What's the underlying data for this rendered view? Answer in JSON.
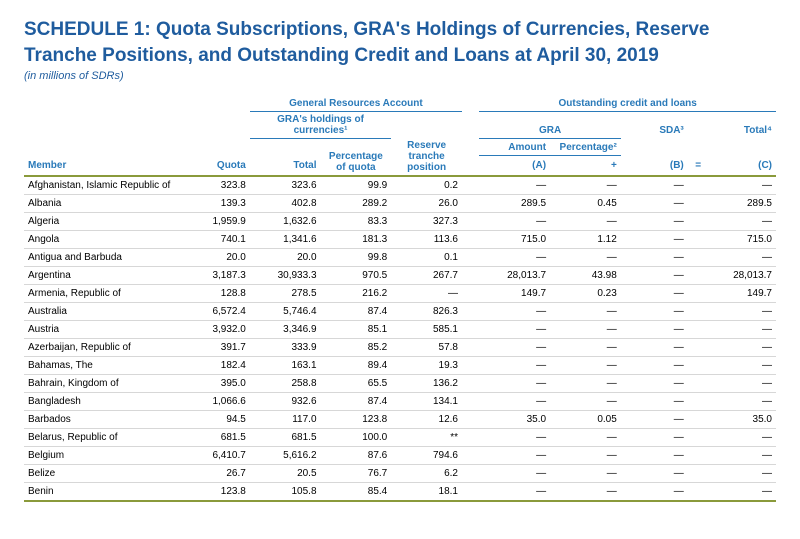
{
  "title_line1": "SCHEDULE 1: Quota Subscriptions, GRA's Holdings of Currencies, Reserve",
  "title_line2": "Tranche Positions, and Outstanding Credit and Loans at April 30, 2019",
  "subtitle": "(in millions of SDRs)",
  "colors": {
    "title": "#1f5c9e",
    "header_text": "#2a7ab9",
    "header_rule": "#2a7ab9",
    "row_divider": "#d7d7d7",
    "accent_rule": "#8a9a3b",
    "body_text": "#000000",
    "background": "#ffffff"
  },
  "headers": {
    "member": "Member",
    "quota": "Quota",
    "gra_group": "General Resources Account",
    "holdings_group": "GRA's holdings of currencies¹",
    "total": "Total",
    "pct_quota": "Percentage of quota",
    "reserve": "Reserve tranche position",
    "ocl_group": "Outstanding credit and loans",
    "gra_sub": "GRA",
    "amount": "Amount",
    "percentage": "Percentage²",
    "a": "(A)",
    "plus": "+",
    "sda": "SDA³",
    "b": "(B)",
    "eq": "=",
    "total4": "Total⁴",
    "c": "(C)"
  },
  "rows": [
    {
      "member": "Afghanistan, Islamic Republic of",
      "quota": "323.8",
      "total": "323.6",
      "pct": "99.9",
      "reserve": "0.2",
      "amt": "—",
      "pctg": "—",
      "sda": "—",
      "tot": "—"
    },
    {
      "member": "Albania",
      "quota": "139.3",
      "total": "402.8",
      "pct": "289.2",
      "reserve": "26.0",
      "amt": "289.5",
      "pctg": "0.45",
      "sda": "—",
      "tot": "289.5"
    },
    {
      "member": "Algeria",
      "quota": "1,959.9",
      "total": "1,632.6",
      "pct": "83.3",
      "reserve": "327.3",
      "amt": "—",
      "pctg": "—",
      "sda": "—",
      "tot": "—"
    },
    {
      "member": "Angola",
      "quota": "740.1",
      "total": "1,341.6",
      "pct": "181.3",
      "reserve": "113.6",
      "amt": "715.0",
      "pctg": "1.12",
      "sda": "—",
      "tot": "715.0"
    },
    {
      "member": "Antigua and Barbuda",
      "quota": "20.0",
      "total": "20.0",
      "pct": "99.8",
      "reserve": "0.1",
      "amt": "—",
      "pctg": "—",
      "sda": "—",
      "tot": "—"
    },
    {
      "member": "Argentina",
      "quota": "3,187.3",
      "total": "30,933.3",
      "pct": "970.5",
      "reserve": "267.7",
      "amt": "28,013.7",
      "pctg": "43.98",
      "sda": "—",
      "tot": "28,013.7"
    },
    {
      "member": "Armenia, Republic of",
      "quota": "128.8",
      "total": "278.5",
      "pct": "216.2",
      "reserve": "—",
      "amt": "149.7",
      "pctg": "0.23",
      "sda": "—",
      "tot": "149.7"
    },
    {
      "member": "Australia",
      "quota": "6,572.4",
      "total": "5,746.4",
      "pct": "87.4",
      "reserve": "826.3",
      "amt": "—",
      "pctg": "—",
      "sda": "—",
      "tot": "—"
    },
    {
      "member": "Austria",
      "quota": "3,932.0",
      "total": "3,346.9",
      "pct": "85.1",
      "reserve": "585.1",
      "amt": "—",
      "pctg": "—",
      "sda": "—",
      "tot": "—"
    },
    {
      "member": "Azerbaijan, Republic of",
      "quota": "391.7",
      "total": "333.9",
      "pct": "85.2",
      "reserve": "57.8",
      "amt": "—",
      "pctg": "—",
      "sda": "—",
      "tot": "—"
    },
    {
      "member": "Bahamas, The",
      "quota": "182.4",
      "total": "163.1",
      "pct": "89.4",
      "reserve": "19.3",
      "amt": "—",
      "pctg": "—",
      "sda": "—",
      "tot": "—"
    },
    {
      "member": "Bahrain, Kingdom of",
      "quota": "395.0",
      "total": "258.8",
      "pct": "65.5",
      "reserve": "136.2",
      "amt": "—",
      "pctg": "—",
      "sda": "—",
      "tot": "—"
    },
    {
      "member": "Bangladesh",
      "quota": "1,066.6",
      "total": "932.6",
      "pct": "87.4",
      "reserve": "134.1",
      "amt": "—",
      "pctg": "—",
      "sda": "—",
      "tot": "—"
    },
    {
      "member": "Barbados",
      "quota": "94.5",
      "total": "117.0",
      "pct": "123.8",
      "reserve": "12.6",
      "amt": "35.0",
      "pctg": "0.05",
      "sda": "—",
      "tot": "35.0"
    },
    {
      "member": "Belarus, Republic of",
      "quota": "681.5",
      "total": "681.5",
      "pct": "100.0",
      "reserve": "**",
      "amt": "—",
      "pctg": "—",
      "sda": "—",
      "tot": "—"
    },
    {
      "member": "Belgium",
      "quota": "6,410.7",
      "total": "5,616.2",
      "pct": "87.6",
      "reserve": "794.6",
      "amt": "—",
      "pctg": "—",
      "sda": "—",
      "tot": "—"
    },
    {
      "member": "Belize",
      "quota": "26.7",
      "total": "20.5",
      "pct": "76.7",
      "reserve": "6.2",
      "amt": "—",
      "pctg": "—",
      "sda": "—",
      "tot": "—"
    },
    {
      "member": "Benin",
      "quota": "123.8",
      "total": "105.8",
      "pct": "85.4",
      "reserve": "18.1",
      "amt": "—",
      "pctg": "—",
      "sda": "—",
      "tot": "—"
    }
  ]
}
